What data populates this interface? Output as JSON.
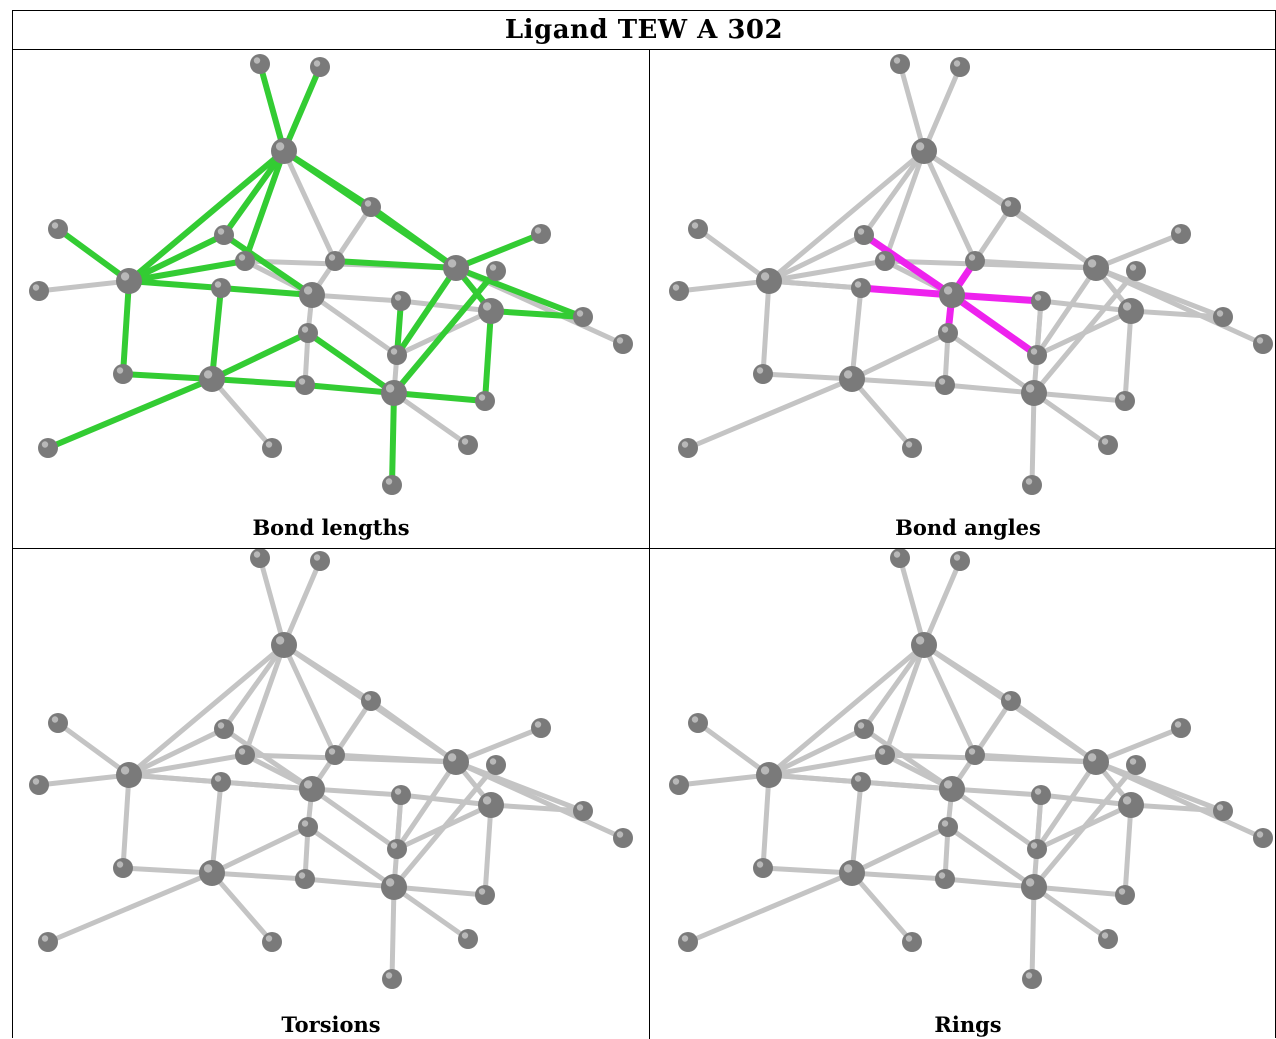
{
  "title": "Ligand TEW A 302",
  "panels": [
    {
      "caption": "Bond lengths",
      "highlight": "#33cc33",
      "highlight_mode": "bonds"
    },
    {
      "caption": "Bond angles",
      "highlight": "#ee22ee",
      "highlight_mode": "angles"
    },
    {
      "caption": "Torsions",
      "highlight": "",
      "highlight_mode": "none"
    },
    {
      "caption": "Rings",
      "highlight": "",
      "highlight_mode": "none"
    }
  ],
  "colors": {
    "atom": "#7a7a7a",
    "bond": "#c4c4c4",
    "border": "#000000"
  }
}
